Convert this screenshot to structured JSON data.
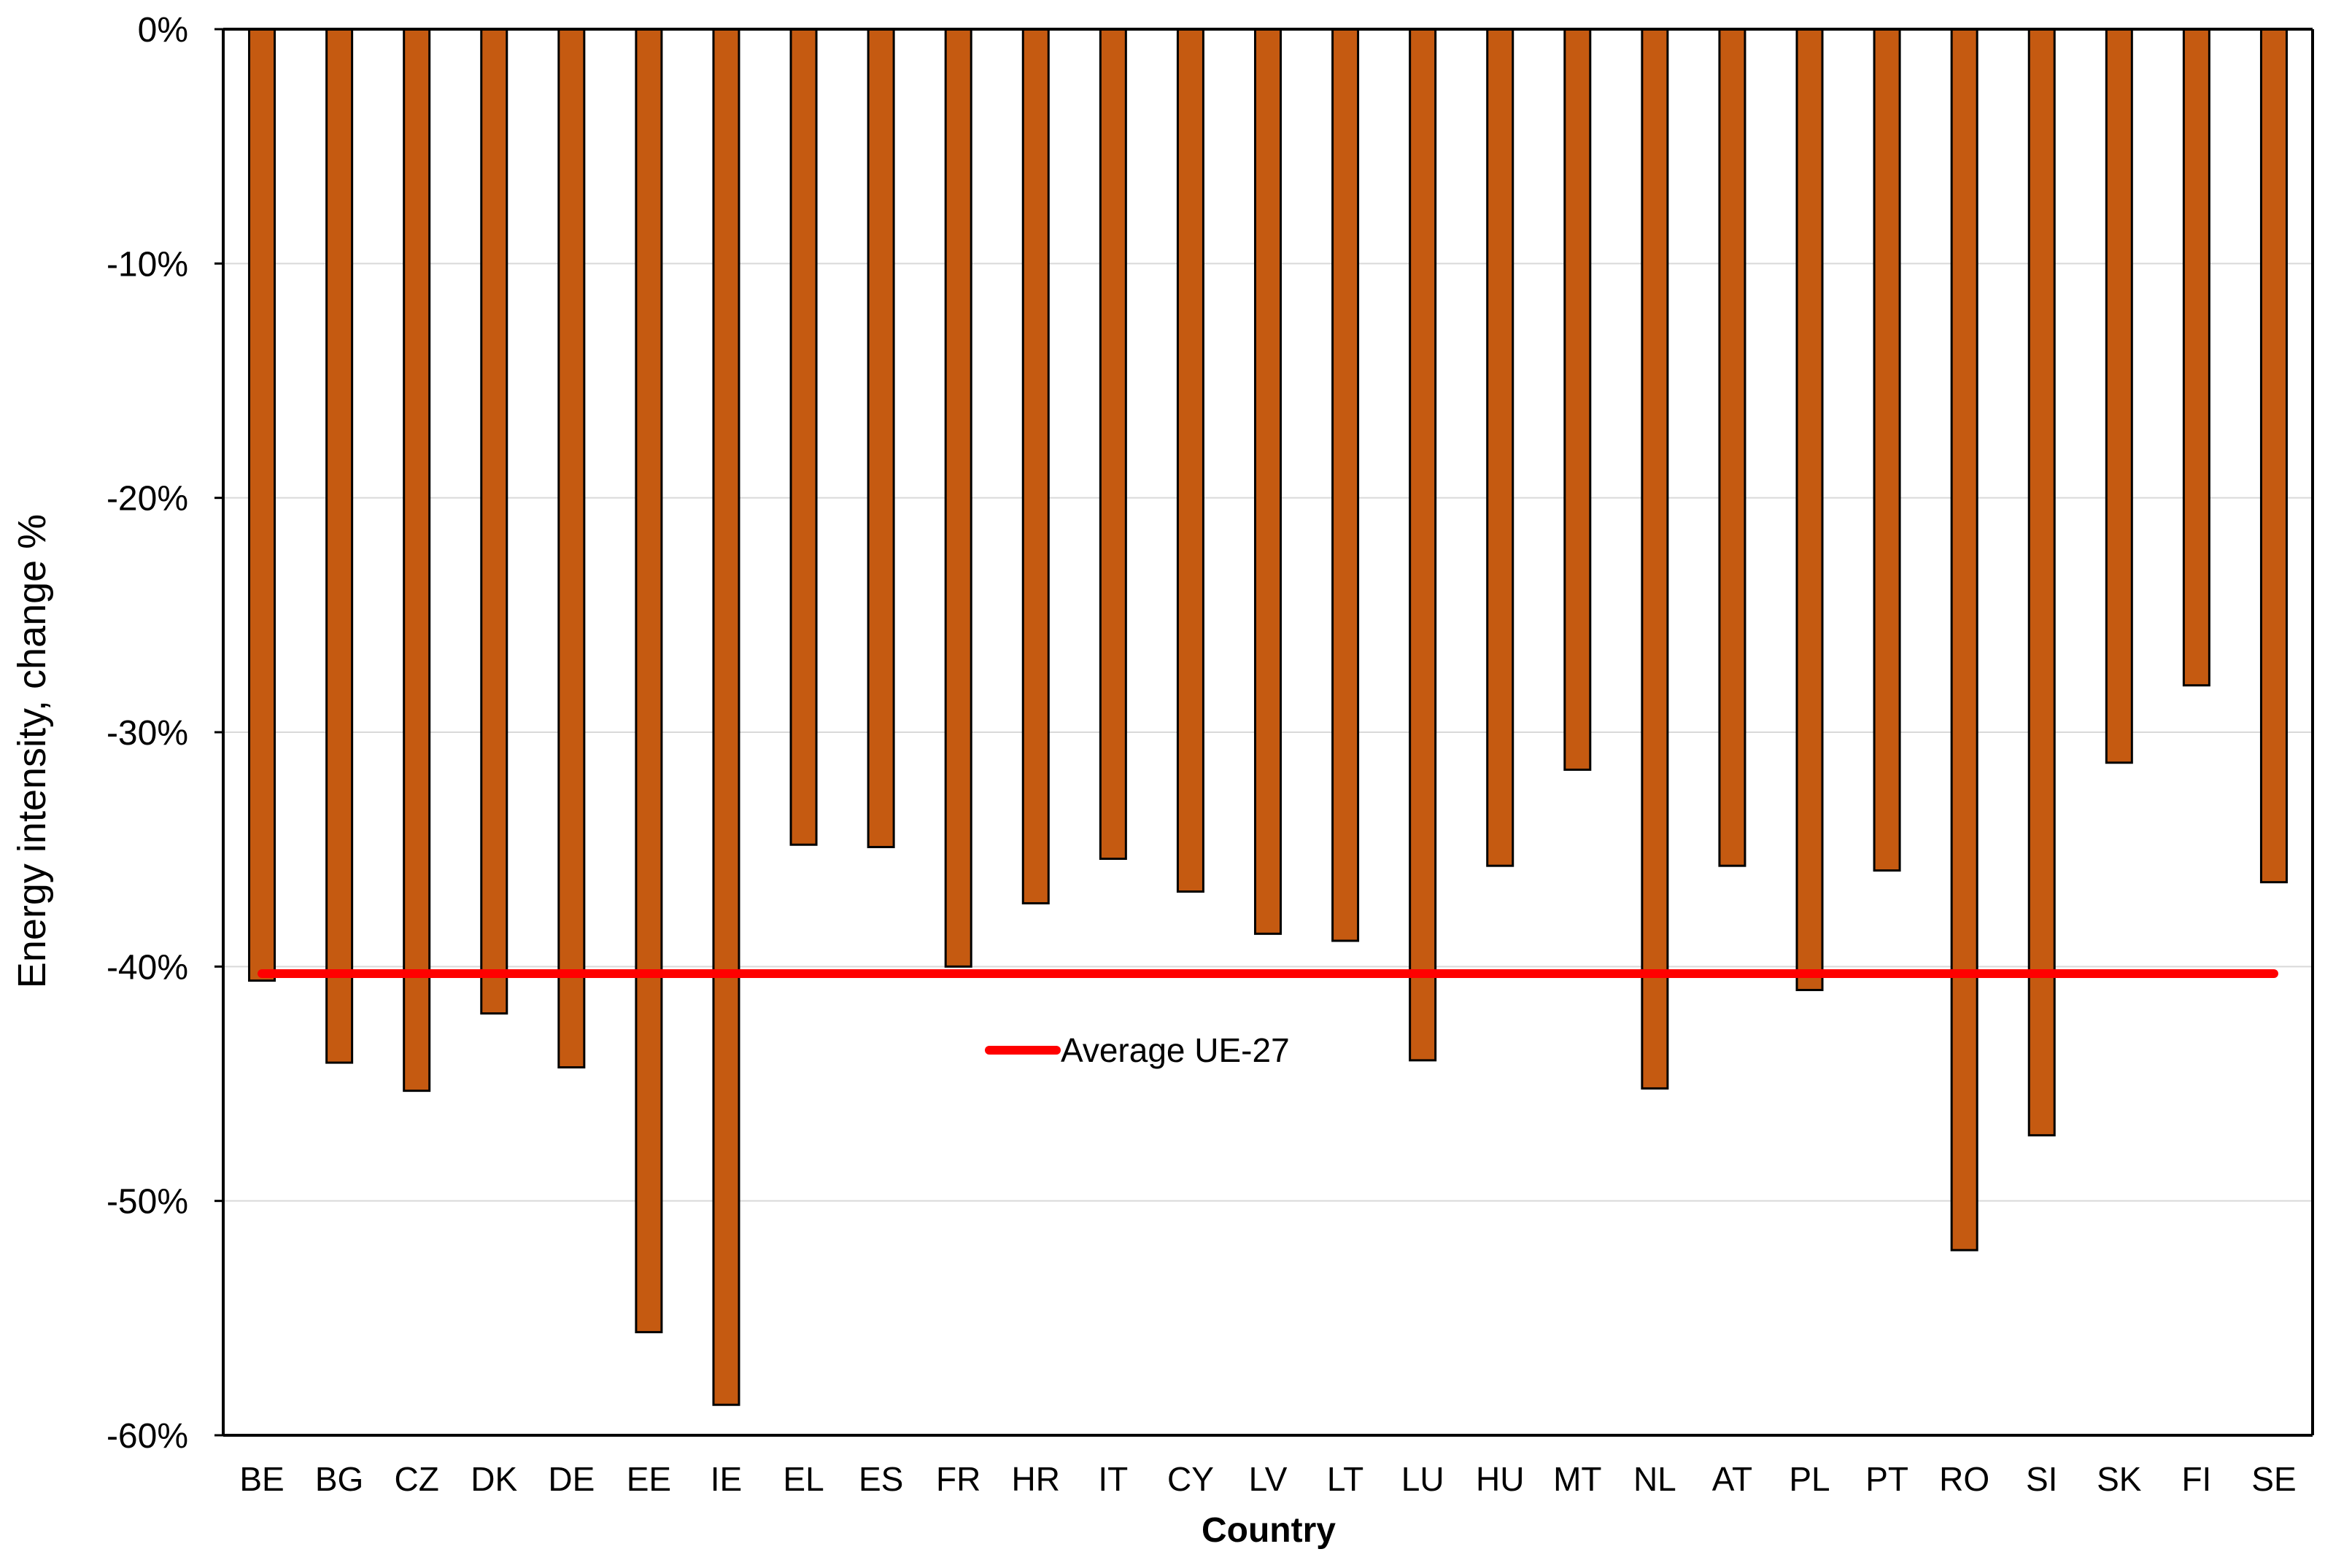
{
  "chart_data": {
    "type": "bar",
    "title": "",
    "xlabel": "Country",
    "ylabel": "Energy intensity, change %",
    "ylim": [
      -60,
      0
    ],
    "yticks": [
      0,
      -10,
      -20,
      -30,
      -40,
      -50,
      -60
    ],
    "ytick_labels": [
      "0%",
      "-10%",
      "-20%",
      "-30%",
      "-40%",
      "-50%",
      "-60%"
    ],
    "grid": true,
    "categories": [
      "BE",
      "BG",
      "CZ",
      "DK",
      "DE",
      "EE",
      "IE",
      "EL",
      "ES",
      "FR",
      "HR",
      "IT",
      "CY",
      "LV",
      "LT",
      "LU",
      "HU",
      "MT",
      "NL",
      "AT",
      "PL",
      "PT",
      "RO",
      "SI",
      "SK",
      "FI",
      "SE"
    ],
    "series": [
      {
        "type": "bar",
        "color": "#C55A11",
        "values": [
          -40.6,
          -44.1,
          -45.3,
          -42.0,
          -44.3,
          -55.6,
          -58.7,
          -34.8,
          -34.9,
          -40.0,
          -37.3,
          -35.4,
          -36.8,
          -38.6,
          -38.9,
          -44.0,
          -35.7,
          -31.6,
          -45.2,
          -35.7,
          -41.0,
          -35.9,
          -52.1,
          -47.2,
          -31.3,
          -28.0,
          -36.4
        ]
      },
      {
        "name": "Average UE-27",
        "type": "line",
        "color": "#FF0000",
        "value": -40.3
      }
    ],
    "legend": {
      "placement": "inside-center",
      "label": "Average UE-27"
    }
  }
}
